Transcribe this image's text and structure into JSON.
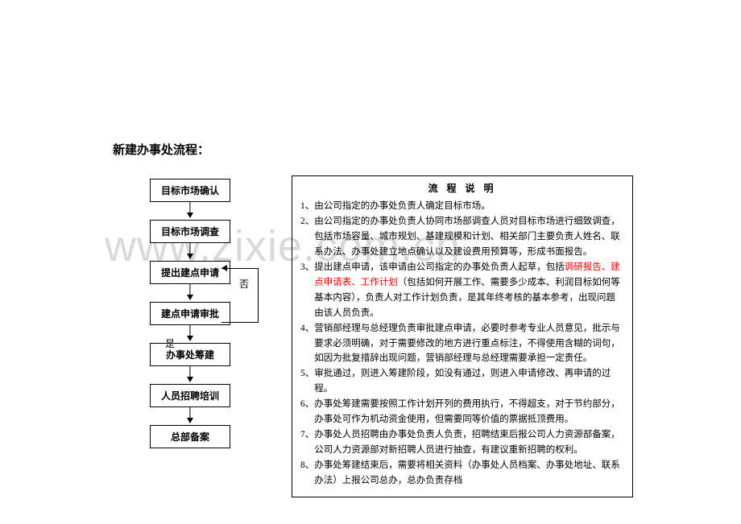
{
  "watermark": "www.zixie.com.cn",
  "title": "新建办事处流程：",
  "flowchart": {
    "type": "flowchart",
    "nodes": [
      {
        "id": "n1",
        "label": "目标市场确认"
      },
      {
        "id": "n2",
        "label": "目标市场调查"
      },
      {
        "id": "n3",
        "label": "提出建点申请"
      },
      {
        "id": "n4",
        "label": "建点申请审批"
      },
      {
        "id": "n5",
        "label": "办事处筹建"
      },
      {
        "id": "n6",
        "label": "人员招聘培训"
      },
      {
        "id": "n7",
        "label": "总部备案"
      }
    ],
    "no_label": "否",
    "yes_label": "是",
    "box_border_color": "#000000",
    "box_bg_color": "#ffffff",
    "font_size": 12,
    "font_weight": "bold"
  },
  "description": {
    "title": "流 程 说 明",
    "title_fontsize": 12,
    "body_fontsize": 11.5,
    "border_color": "#000000",
    "highlight_color": "#ff0000",
    "items": [
      {
        "num": "1、",
        "text": "由公司指定的办事处负责人确定目标市场。"
      },
      {
        "num": "2、",
        "text": "由公司指定的办事处负责人协同市场部调查人员对目标市场进行细致调查，包括市场容量、城市规划、基建规模和计划、相关部门主要负责人姓名、联系办法、办事处建立地点确认以及建设费用预算等，形成书面报告。"
      },
      {
        "num": "3、",
        "pre": "提出建点申请，该申请由公司指定的办事处负责人起草，包括",
        "hl": "调研报告、建点申请表、工作计划",
        "post": "（包括如何开展工作、需要多少成本、利润目标如何等基本内容），负责人对工作计划负责，是其年终考核的基本参考，出现问题由该人员负责。"
      },
      {
        "num": "4、",
        "text": "营销部经理与总经理负责审批建点申请，必要时参考专业人员意见，批示与要求必须明确，对于需要修改的地方进行重点标注，不得使用含糊的词句，如因为批复措辞出现问题，营销部经理与总经理需要承担一定责任。"
      },
      {
        "num": "5、",
        "text": "审批通过，则进入筹建阶段，如没有通过，则进入申请修改、再申请的过程。"
      },
      {
        "num": "6、",
        "text": "办事处筹建需要按照工作计划开列的费用执行，不得超支，对于节约部分，办事处可作为机动资金使用，但需要同等价值的票据抵顶费用。"
      },
      {
        "num": "7、",
        "text": "办事处人员招聘由办事处负责人负责，招聘结束后报公司人力资源部备案，公司人力资源部对新招聘人员进行抽查，有建议重新招聘的权利。"
      },
      {
        "num": "8、",
        "text": "办事处筹建结束后，需要将相关资料（办事处人员档案、办事处地址、联系办法）上报公司总办，总办负责存档"
      }
    ]
  },
  "colors": {
    "background": "#ffffff",
    "text": "#000000",
    "watermark": "#d9d9d9",
    "highlight": "#ff0000"
  }
}
